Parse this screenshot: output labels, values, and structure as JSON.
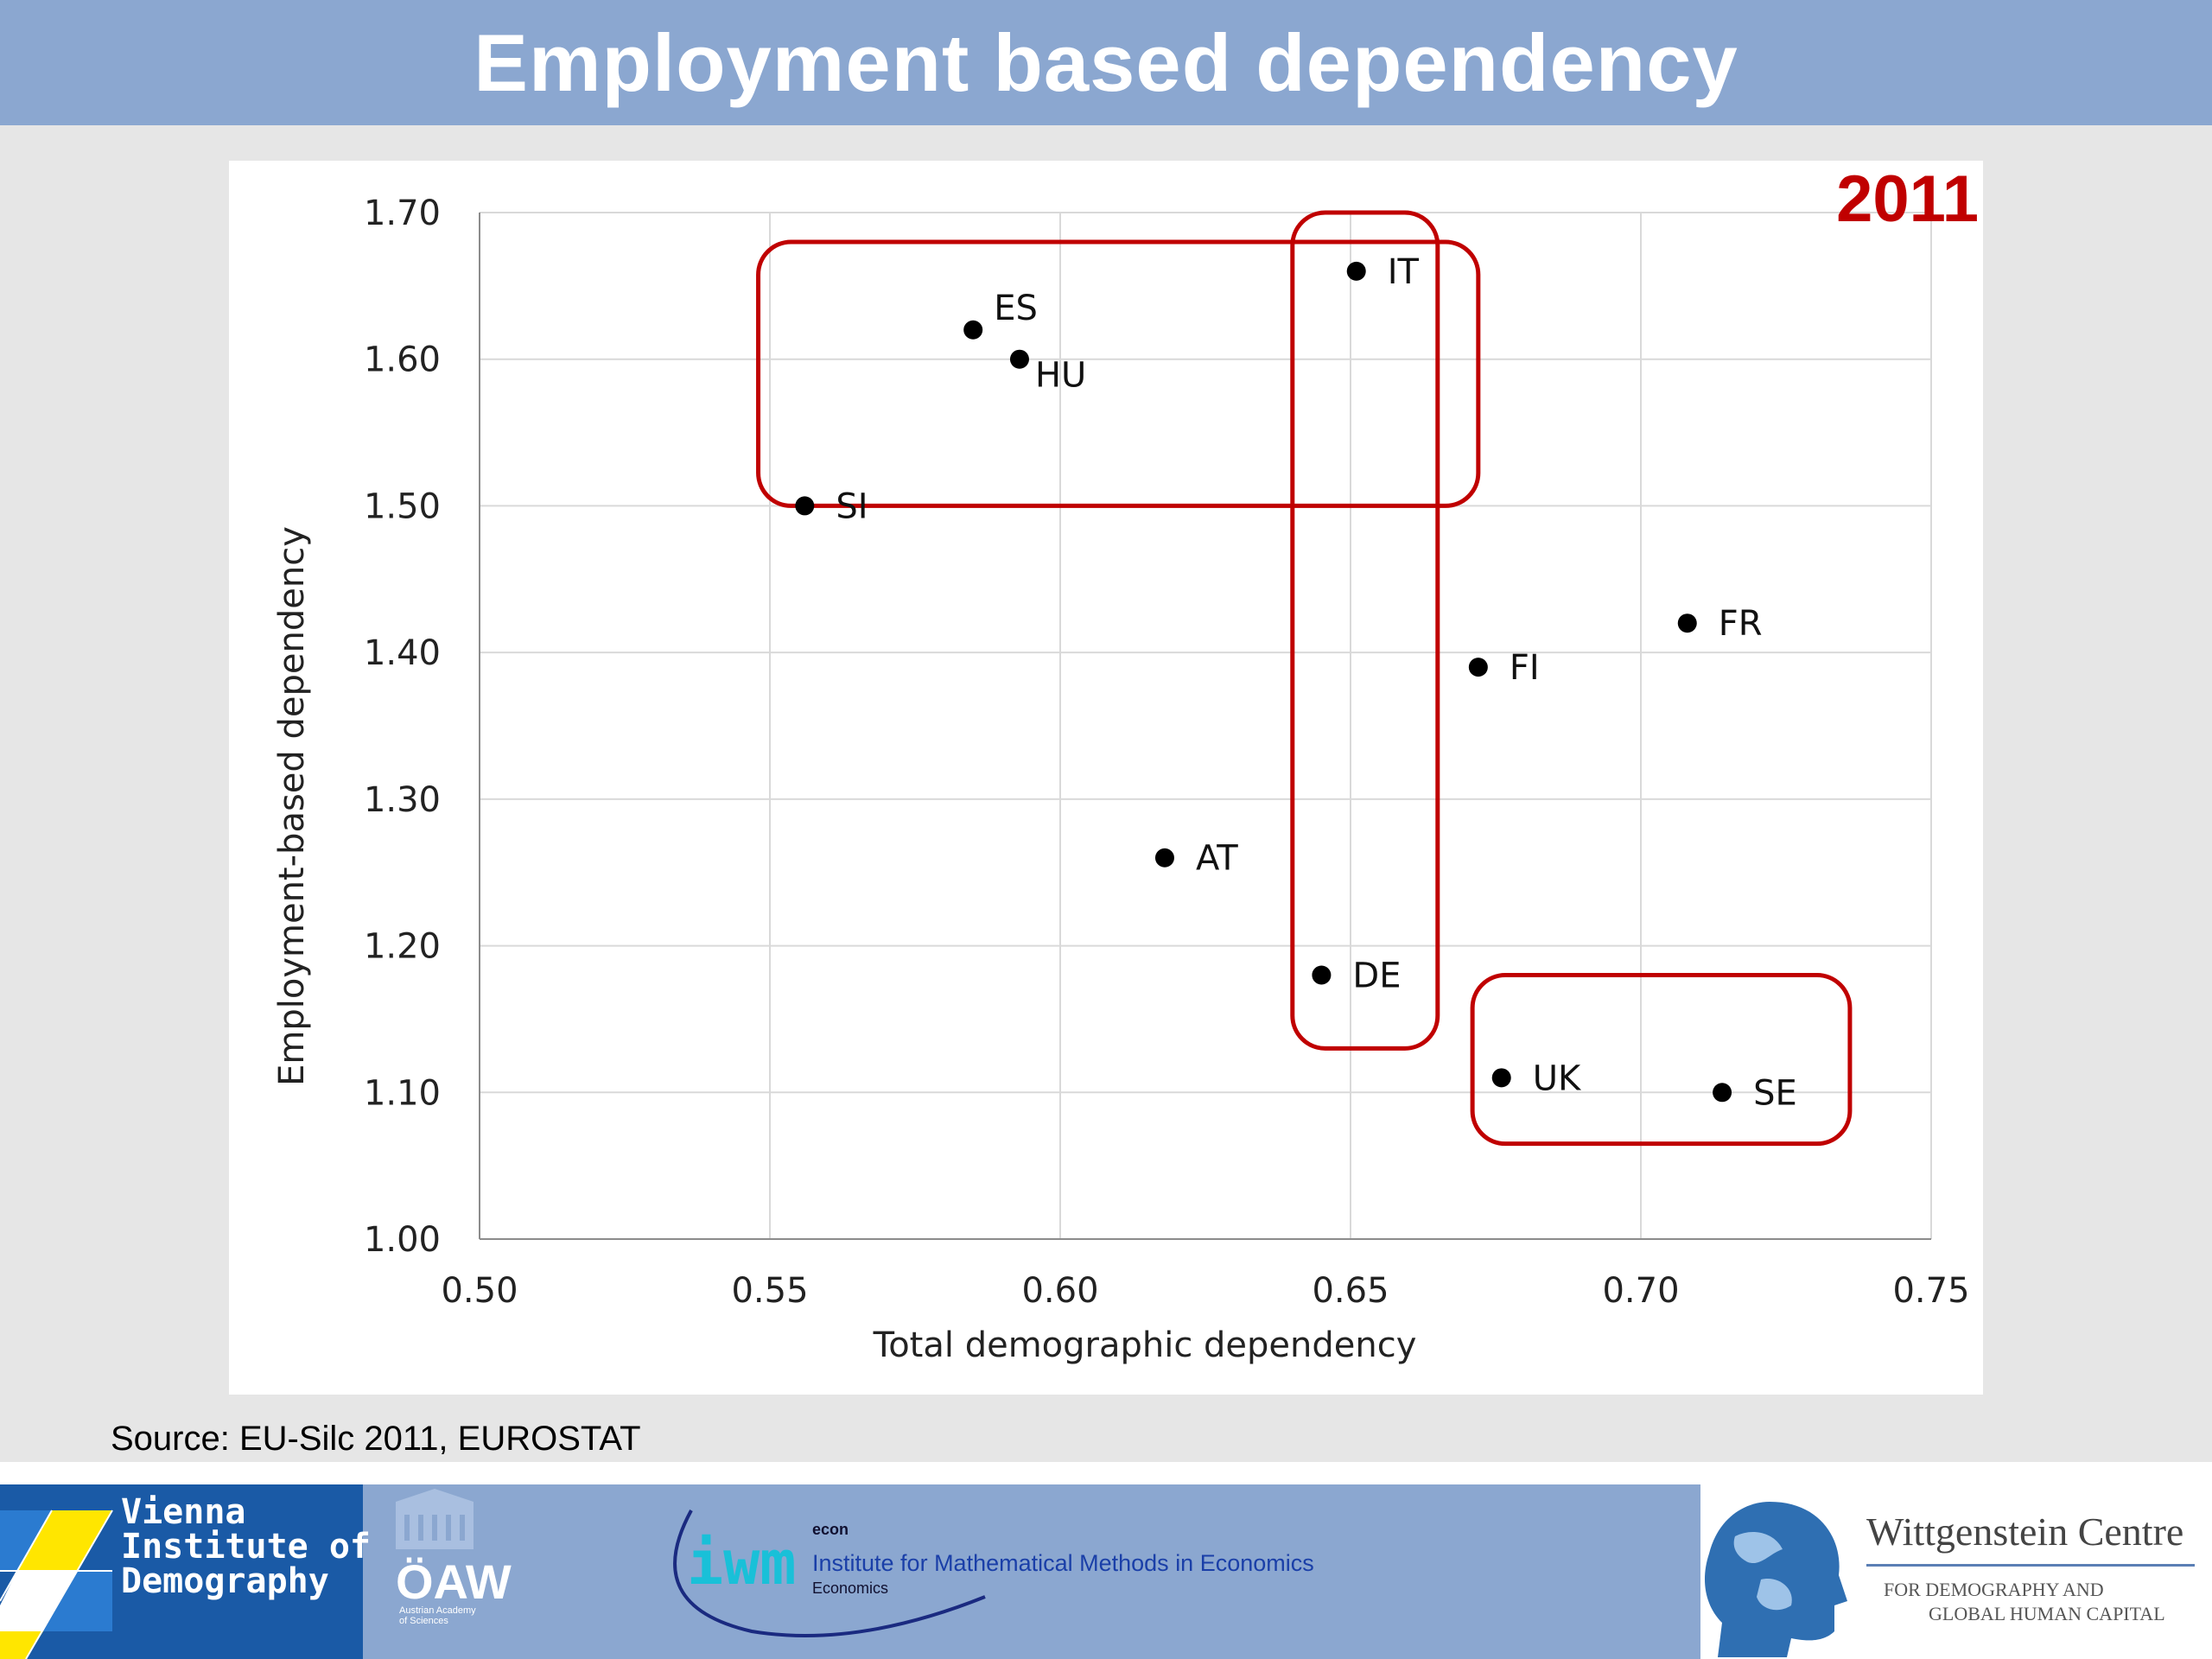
{
  "header": {
    "title": "Employment based dependency"
  },
  "chart_data": {
    "type": "scatter",
    "title": "",
    "year_label": "2011",
    "xlabel": "Total demographic dependency",
    "ylabel": "Employment-based dependency",
    "xlim": [
      0.5,
      0.75
    ],
    "ylim": [
      1.0,
      1.7
    ],
    "x_ticks": [
      "0.50",
      "0.55",
      "0.60",
      "0.65",
      "0.70",
      "0.75"
    ],
    "y_ticks": [
      "1.00",
      "1.10",
      "1.20",
      "1.30",
      "1.40",
      "1.50",
      "1.60",
      "1.70"
    ],
    "grid": true,
    "points": [
      {
        "label": "ES",
        "x": 0.585,
        "y": 1.62
      },
      {
        "label": "HU",
        "x": 0.593,
        "y": 1.6
      },
      {
        "label": "SI",
        "x": 0.556,
        "y": 1.5
      },
      {
        "label": "IT",
        "x": 0.651,
        "y": 1.66
      },
      {
        "label": "FR",
        "x": 0.708,
        "y": 1.42
      },
      {
        "label": "FI",
        "x": 0.672,
        "y": 1.39
      },
      {
        "label": "AT",
        "x": 0.618,
        "y": 1.26
      },
      {
        "label": "DE",
        "x": 0.645,
        "y": 1.18
      },
      {
        "label": "UK",
        "x": 0.676,
        "y": 1.11
      },
      {
        "label": "SE",
        "x": 0.714,
        "y": 1.1
      }
    ],
    "highlight_groups": [
      {
        "members": [
          "ES",
          "HU",
          "SI",
          "IT"
        ],
        "x": [
          0.548,
          0.672
        ],
        "y": [
          1.5,
          1.68
        ]
      },
      {
        "members": [
          "IT",
          "DE"
        ],
        "x": [
          0.64,
          0.665
        ],
        "y": [
          1.13,
          1.7
        ]
      },
      {
        "members": [
          "UK",
          "SE"
        ],
        "x": [
          0.671,
          0.736
        ],
        "y": [
          1.065,
          1.18
        ]
      }
    ],
    "colors": {
      "highlight": "#c00000",
      "points": "#000000",
      "grid": "#d9d9d9"
    }
  },
  "source": "Source: EU-Silc 2011, EUROSTAT",
  "footer": {
    "vid": [
      "Vienna",
      "Institute of",
      "Demography"
    ],
    "oaw": "ÖAW",
    "oaw_sub": "Austrian Academy of Sciences",
    "iwm_econ": "econ",
    "iwm_name": "Institute for Mathematical Methods in Economics",
    "iwm_sub": "Economics",
    "wc_title": "Wittgenstein Centre",
    "wc_sub": [
      "FOR DEMOGRAPHY AND",
      "GLOBAL HUMAN CAPITAL"
    ]
  }
}
